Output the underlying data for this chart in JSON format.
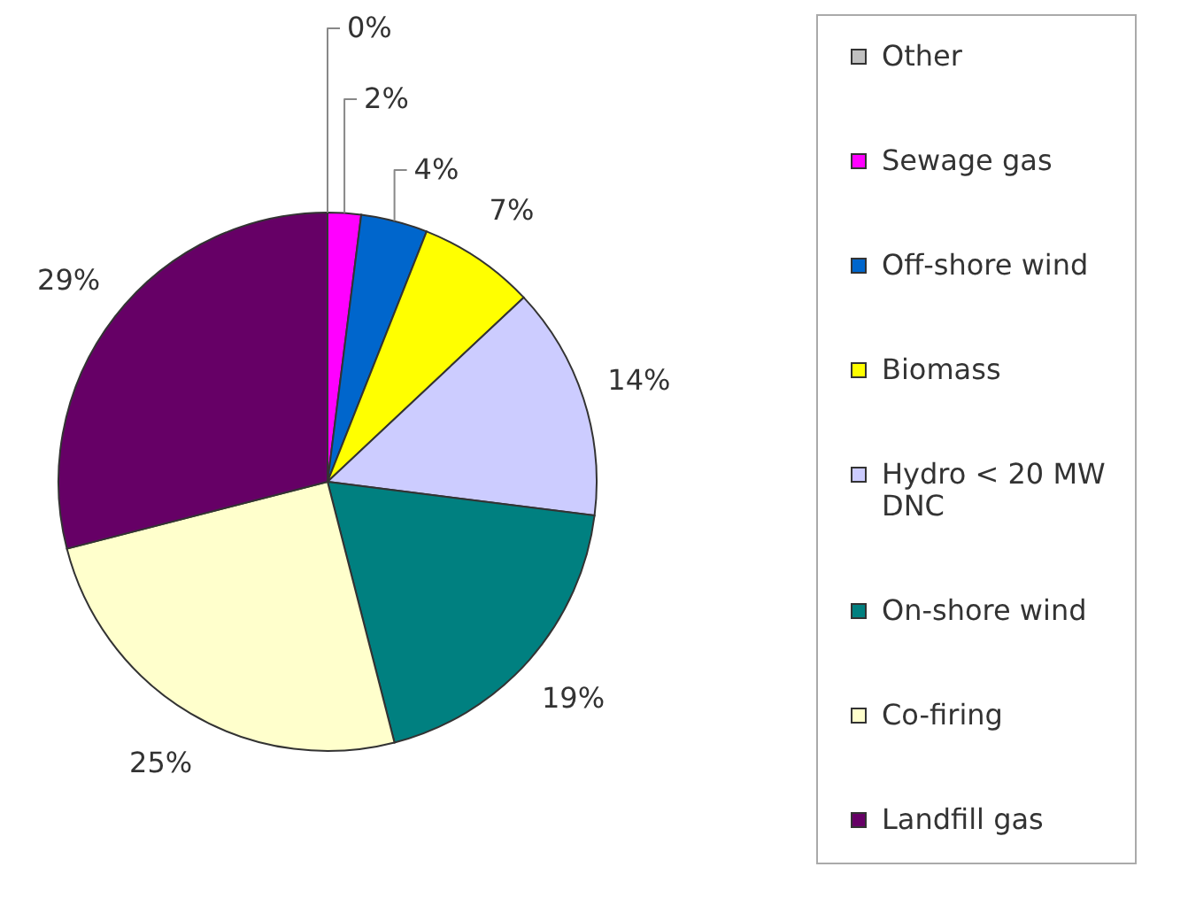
{
  "chart_data": {
    "type": "pie",
    "categories": [
      "Other",
      "Sewage gas",
      "Off-shore wind",
      "Biomass",
      "Hydro < 20 MW DNC",
      "On-shore wind",
      "Co-firing",
      "Landfill gas"
    ],
    "values": [
      0,
      2,
      4,
      7,
      14,
      19,
      25,
      29
    ],
    "colors": [
      "#c0c0c0",
      "#ff00ff",
      "#0066cc",
      "#ffff00",
      "#ccccff",
      "#008080",
      "#ffffcc",
      "#660066"
    ],
    "value_labels": [
      "0%",
      "2%",
      "4%",
      "7%",
      "14%",
      "19%",
      "25%",
      "29%"
    ],
    "legend": "right"
  }
}
